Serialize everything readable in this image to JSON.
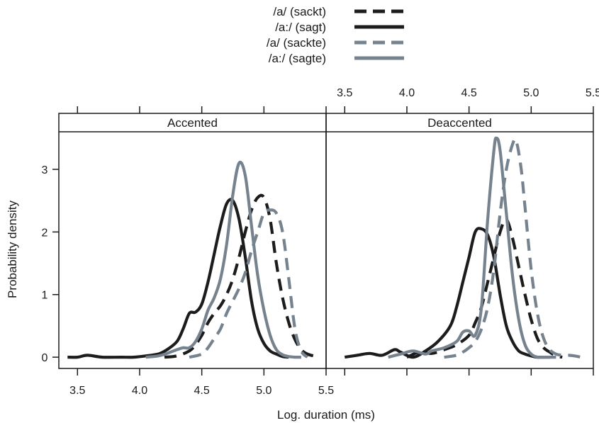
{
  "chart_data": {
    "type": "line",
    "xlabel": "Log. duration (ms)",
    "ylabel": "Probability density",
    "xlim": [
      3.35,
      5.5
    ],
    "ylim": [
      -0.18,
      3.6
    ],
    "x_ticks": [
      "3.5",
      "4.0",
      "4.5",
      "5.0",
      "5.5"
    ],
    "y_ticks": [
      "0",
      "1",
      "2",
      "3"
    ],
    "colors": {
      "black": "#1c1c1c",
      "gray": "#76838f"
    },
    "legend": {
      "position": "top",
      "entries": [
        {
          "label": "/a/ (sackt)",
          "color": "black",
          "dash": true
        },
        {
          "label": "/a:/ (sagt)",
          "color": "black",
          "dash": false
        },
        {
          "label": "/a/ (sackte)",
          "color": "gray",
          "dash": true
        },
        {
          "label": "/a:/ (sagte)",
          "color": "gray",
          "dash": false
        }
      ]
    },
    "panels": [
      {
        "title": "Accented",
        "series": [
          {
            "name": "/a:/ (sagt)",
            "color": "black",
            "dash": false,
            "x": [
              3.42,
              3.5,
              3.58,
              3.7,
              3.85,
              3.95,
              4.05,
              4.15,
              4.22,
              4.3,
              4.35,
              4.4,
              4.45,
              4.5,
              4.55,
              4.6,
              4.65,
              4.7,
              4.75,
              4.8,
              4.85,
              4.9,
              4.95,
              5.0,
              5.05,
              5.1,
              5.15,
              5.2
            ],
            "y": [
              0,
              0,
              0.03,
              0,
              0,
              0,
              0.02,
              0.05,
              0.12,
              0.25,
              0.45,
              0.7,
              0.72,
              0.85,
              1.2,
              1.65,
              2.1,
              2.45,
              2.5,
              2.2,
              1.6,
              0.9,
              0.45,
              0.22,
              0.1,
              0.05,
              0.01,
              0
            ]
          },
          {
            "name": "/a/ (sackt)",
            "color": "black",
            "dash": true,
            "x": [
              4.2,
              4.3,
              4.4,
              4.45,
              4.5,
              4.55,
              4.6,
              4.65,
              4.7,
              4.75,
              4.8,
              4.85,
              4.9,
              4.95,
              5.0,
              5.05,
              5.1,
              5.15,
              5.2,
              5.25,
              5.3,
              5.35,
              5.4,
              5.45
            ],
            "y": [
              0,
              0.02,
              0.1,
              0.2,
              0.35,
              0.55,
              0.7,
              0.82,
              1.0,
              1.25,
              1.6,
              2.0,
              2.35,
              2.55,
              2.55,
              2.2,
              1.5,
              0.95,
              0.55,
              0.28,
              0.12,
              0.05,
              0.02,
              0
            ]
          },
          {
            "name": "/a:/ (sagte)",
            "color": "gray",
            "dash": false,
            "x": [
              4.05,
              4.15,
              4.22,
              4.3,
              4.35,
              4.4,
              4.45,
              4.5,
              4.55,
              4.6,
              4.65,
              4.7,
              4.75,
              4.8,
              4.85,
              4.9,
              4.95,
              5.0,
              5.05,
              5.1,
              5.15,
              5.2,
              5.25,
              5.3
            ],
            "y": [
              0,
              0.02,
              0.06,
              0.12,
              0.15,
              0.15,
              0.25,
              0.45,
              0.75,
              0.95,
              1.25,
              1.8,
              2.6,
              3.1,
              2.9,
              2.1,
              1.3,
              0.75,
              0.35,
              0.12,
              0.04,
              0.01,
              0,
              0
            ]
          },
          {
            "name": "/a/ (sackte)",
            "color": "gray",
            "dash": true,
            "x": [
              4.4,
              4.5,
              4.55,
              4.6,
              4.65,
              4.7,
              4.75,
              4.8,
              4.85,
              4.9,
              4.95,
              5.0,
              5.05,
              5.1,
              5.15,
              5.2,
              5.25,
              5.3,
              5.35
            ],
            "y": [
              0,
              0.05,
              0.15,
              0.3,
              0.45,
              0.7,
              0.9,
              1.1,
              1.35,
              1.7,
              2.0,
              2.3,
              2.35,
              2.3,
              2.0,
              1.25,
              0.45,
              0.1,
              0
            ]
          }
        ]
      },
      {
        "title": "Deaccented",
        "x_ticks": [
          "3.5",
          "4.0",
          "4.5",
          "5.0",
          "5.5"
        ],
        "series": [
          {
            "name": "/a:/ (sagt)",
            "color": "black",
            "dash": false,
            "x": [
              3.5,
              3.6,
              3.7,
              3.8,
              3.9,
              3.95,
              4.05,
              4.15,
              4.25,
              4.35,
              4.4,
              4.45,
              4.5,
              4.55,
              4.6,
              4.65,
              4.7,
              4.75,
              4.8,
              4.85,
              4.9,
              4.95,
              5.0,
              5.05,
              5.1,
              5.15
            ],
            "y": [
              0,
              0.03,
              0.06,
              0.03,
              0.12,
              0.08,
              0,
              0.1,
              0.25,
              0.5,
              0.8,
              1.2,
              1.6,
              2.0,
              2.05,
              1.95,
              1.6,
              1.0,
              0.5,
              0.25,
              0.1,
              0.05,
              0.02,
              0,
              0,
              0
            ]
          },
          {
            "name": "/a/ (sackt)",
            "color": "black",
            "dash": true,
            "x": [
              4.0,
              4.1,
              4.2,
              4.3,
              4.4,
              4.5,
              4.55,
              4.6,
              4.65,
              4.7,
              4.75,
              4.8,
              4.85,
              4.9,
              4.95,
              5.0,
              5.05,
              5.1,
              5.15,
              5.2,
              5.25
            ],
            "y": [
              0,
              0.08,
              0.06,
              0.12,
              0.2,
              0.35,
              0.55,
              0.8,
              1.2,
              1.6,
              2.0,
              2.2,
              1.9,
              1.45,
              1.0,
              0.6,
              0.3,
              0.15,
              0.08,
              0.02,
              0
            ]
          },
          {
            "name": "/a:/ (sagte)",
            "color": "gray",
            "dash": false,
            "x": [
              3.85,
              3.95,
              4.05,
              4.15,
              4.2,
              4.3,
              4.4,
              4.45,
              4.5,
              4.55,
              4.6,
              4.65,
              4.7,
              4.72,
              4.75,
              4.8,
              4.85,
              4.9,
              4.95,
              5.0,
              5.05,
              5.1,
              5.2
            ],
            "y": [
              0,
              0.05,
              0.1,
              0.05,
              0.1,
              0.15,
              0.25,
              0.4,
              0.42,
              0.35,
              0.8,
              2.2,
              3.3,
              3.5,
              3.3,
              2.3,
              1.3,
              0.6,
              0.2,
              0.05,
              0,
              0,
              0
            ]
          },
          {
            "name": "/a/ (sackte)",
            "color": "gray",
            "dash": true,
            "x": [
              4.3,
              4.4,
              4.45,
              4.5,
              4.55,
              4.6,
              4.65,
              4.7,
              4.75,
              4.8,
              4.85,
              4.88,
              4.92,
              4.95,
              5.0,
              5.05,
              5.1,
              5.15,
              5.2,
              5.25,
              5.3,
              5.35,
              5.4
            ],
            "y": [
              0,
              0.03,
              0.08,
              0.15,
              0.25,
              0.45,
              0.8,
              1.4,
              2.3,
              3.0,
              3.4,
              3.45,
              3.0,
              2.4,
              1.4,
              0.7,
              0.3,
              0.12,
              0.05,
              0.03,
              0.03,
              0.02,
              0
            ]
          }
        ]
      }
    ]
  }
}
